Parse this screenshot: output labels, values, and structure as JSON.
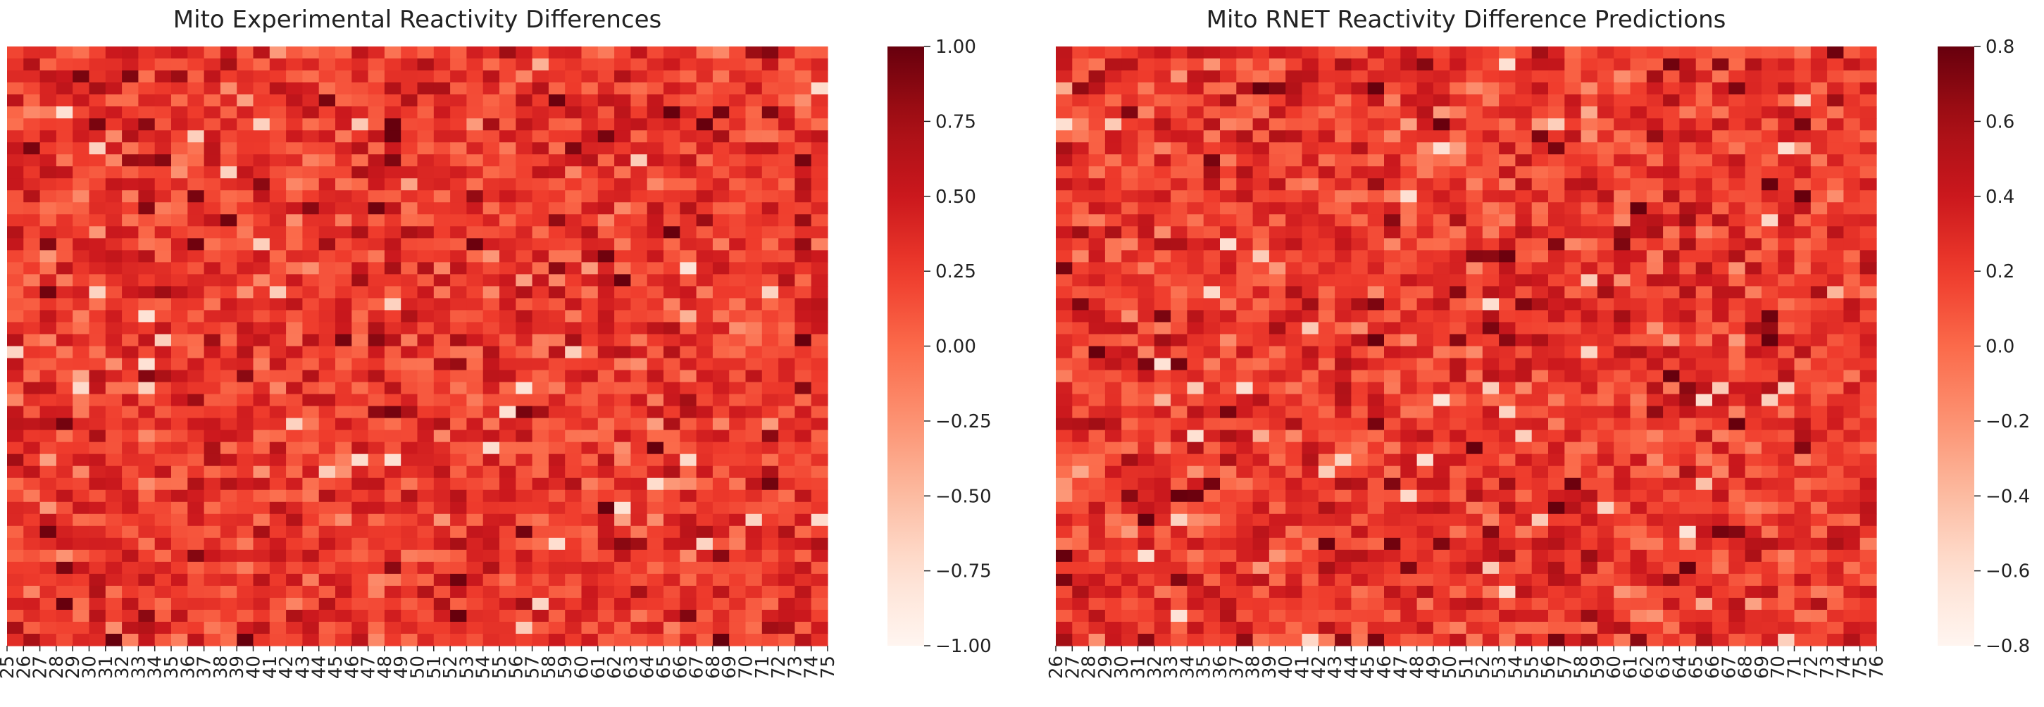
{
  "chart_data": [
    {
      "type": "heatmap",
      "title": "Mito Experimental Reactivity Differences",
      "xlabel": "",
      "ylabel": "",
      "x_tick_labels": [
        "25",
        "26",
        "27",
        "28",
        "29",
        "30",
        "31",
        "32",
        "33",
        "34",
        "35",
        "36",
        "37",
        "38",
        "39",
        "40",
        "41",
        "42",
        "43",
        "44",
        "45",
        "46",
        "47",
        "48",
        "49",
        "50",
        "51",
        "52",
        "53",
        "54",
        "55",
        "56",
        "57",
        "58",
        "59",
        "60",
        "61",
        "62",
        "63",
        "64",
        "65",
        "66",
        "67",
        "68",
        "69",
        "70",
        "71",
        "72",
        "73",
        "74",
        "75"
      ],
      "n_rows": 50,
      "n_cols": 50,
      "value_range": [
        -1.0,
        1.0
      ],
      "colormap": "Reds",
      "colorbar_ticks": [
        1.0,
        0.75,
        0.5,
        0.25,
        0.0,
        -0.25,
        -0.5,
        -0.75,
        -1.0
      ],
      "colorbar_tick_labels": [
        "1.00",
        "0.75",
        "0.50",
        "0.25",
        "0.00",
        "−0.25",
        "−0.50",
        "−0.75",
        "−1.00"
      ],
      "values_note": "mostly 0.0–0.5 with scattered extremes",
      "seed": 11
    },
    {
      "type": "heatmap",
      "title": "Mito RNET Reactivity Difference Predictions",
      "xlabel": "",
      "ylabel": "",
      "x_tick_labels": [
        "26",
        "27",
        "28",
        "29",
        "30",
        "31",
        "32",
        "33",
        "34",
        "35",
        "36",
        "37",
        "38",
        "39",
        "40",
        "41",
        "42",
        "43",
        "44",
        "45",
        "46",
        "47",
        "48",
        "49",
        "50",
        "51",
        "52",
        "53",
        "54",
        "55",
        "56",
        "57",
        "58",
        "59",
        "60",
        "61",
        "62",
        "63",
        "64",
        "65",
        "66",
        "67",
        "68",
        "69",
        "70",
        "71",
        "72",
        "73",
        "74",
        "75",
        "76"
      ],
      "n_rows": 50,
      "n_cols": 50,
      "value_range": [
        -0.8,
        0.8
      ],
      "colormap": "Reds",
      "colorbar_ticks": [
        0.8,
        0.6,
        0.4,
        0.2,
        0.0,
        -0.2,
        -0.4,
        -0.6,
        -0.8
      ],
      "colorbar_tick_labels": [
        "0.8",
        "0.6",
        "0.4",
        "0.2",
        "0.0",
        "−0.2",
        "−0.4",
        "−0.6",
        "−0.8"
      ],
      "values_note": "mostly 0.0–0.4 with scattered extremes",
      "seed": 29
    }
  ]
}
